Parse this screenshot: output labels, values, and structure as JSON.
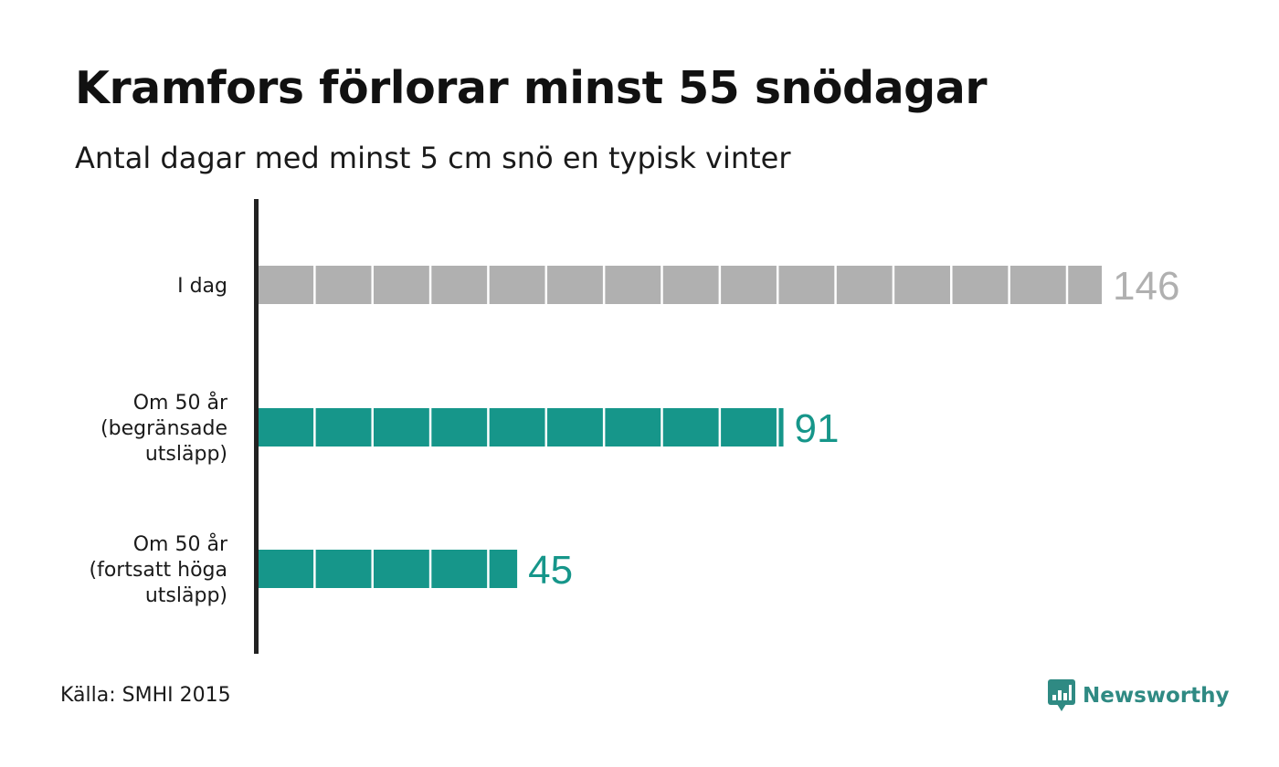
{
  "title": "Kramfors förlorar minst 55 snödagar",
  "subtitle": "Antal dagar med minst 5 cm snö en typisk vinter",
  "source": "Källa: SMHI 2015",
  "brand": {
    "name": "Newsworthy",
    "icon": "newsworthy-logo-icon",
    "color": "#2f8a83"
  },
  "colors": {
    "current": "#b0b0b0",
    "future": "#16968a",
    "axis": "#222222",
    "label": "#1a1a1a"
  },
  "chart_data": {
    "type": "bar",
    "orientation": "horizontal",
    "unit_block": 10,
    "grid": false,
    "categories": [
      [
        "I dag"
      ],
      [
        "Om 50 år",
        "(begränsade",
        "utsläpp)"
      ],
      [
        "Om 50 år",
        "(fortsatt höga",
        "utsläpp)"
      ]
    ],
    "values": [
      146,
      91,
      45
    ],
    "bar_colors": [
      "#b0b0b0",
      "#16968a",
      "#16968a"
    ],
    "xlim": [
      0,
      146
    ]
  }
}
